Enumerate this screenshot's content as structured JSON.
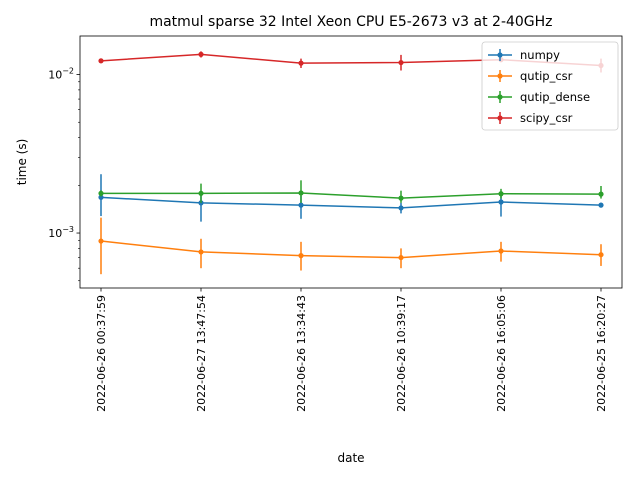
{
  "chart_data": {
    "type": "line",
    "title": "matmul sparse 32 Intel Xeon CPU E5-2673 v3 at 2-40GHz",
    "xlabel": "date",
    "ylabel": "time (s)",
    "yscale": "log",
    "ylim": [
      0.00045,
      0.0175
    ],
    "yticks": [
      {
        "value": 0.001,
        "base": "10",
        "exp": "−3"
      },
      {
        "value": 0.01,
        "base": "10",
        "exp": "−2"
      }
    ],
    "categories": [
      "2022-06-26 00:37:59",
      "2022-06-27 13:47:54",
      "2022-06-26 13:34:43",
      "2022-06-26 10:39:17",
      "2022-06-26 16:05:06",
      "2022-06-25 16:20:27"
    ],
    "legend_position": "top-right",
    "series": [
      {
        "name": "numpy",
        "color": "#1f77b4",
        "values": [
          0.00168,
          0.00155,
          0.0015,
          0.00144,
          0.00157,
          0.0015
        ],
        "err_low": [
          0.00128,
          0.00118,
          0.00123,
          0.00133,
          0.00127,
          0.00145
        ],
        "err_high": [
          0.00235,
          0.00178,
          0.00172,
          0.00155,
          0.00182,
          0.00155
        ]
      },
      {
        "name": "qutip_csr",
        "color": "#ff7f0e",
        "values": [
          0.00089,
          0.00076,
          0.00072,
          0.0007,
          0.00077,
          0.00073
        ],
        "err_low": [
          0.00055,
          0.0006,
          0.00058,
          0.0006,
          0.00066,
          0.00062
        ],
        "err_high": [
          0.00125,
          0.00092,
          0.00088,
          0.0008,
          0.00088,
          0.00085
        ]
      },
      {
        "name": "qutip_dense",
        "color": "#2ca02c",
        "values": [
          0.00178,
          0.00178,
          0.00179,
          0.00166,
          0.00177,
          0.00176
        ],
        "err_low": [
          0.0017,
          0.00155,
          0.00155,
          0.00155,
          0.00165,
          0.00165
        ],
        "err_high": [
          0.00186,
          0.00205,
          0.00215,
          0.00185,
          0.0019,
          0.00198
        ]
      },
      {
        "name": "scipy_csr",
        "color": "#d62728",
        "values": [
          0.0122,
          0.0134,
          0.0118,
          0.0119,
          0.0124,
          0.0114
        ],
        "err_low": [
          0.0118,
          0.0128,
          0.011,
          0.0106,
          0.0122,
          0.0103
        ],
        "err_high": [
          0.0126,
          0.014,
          0.0126,
          0.0133,
          0.0127,
          0.0126
        ]
      }
    ]
  }
}
